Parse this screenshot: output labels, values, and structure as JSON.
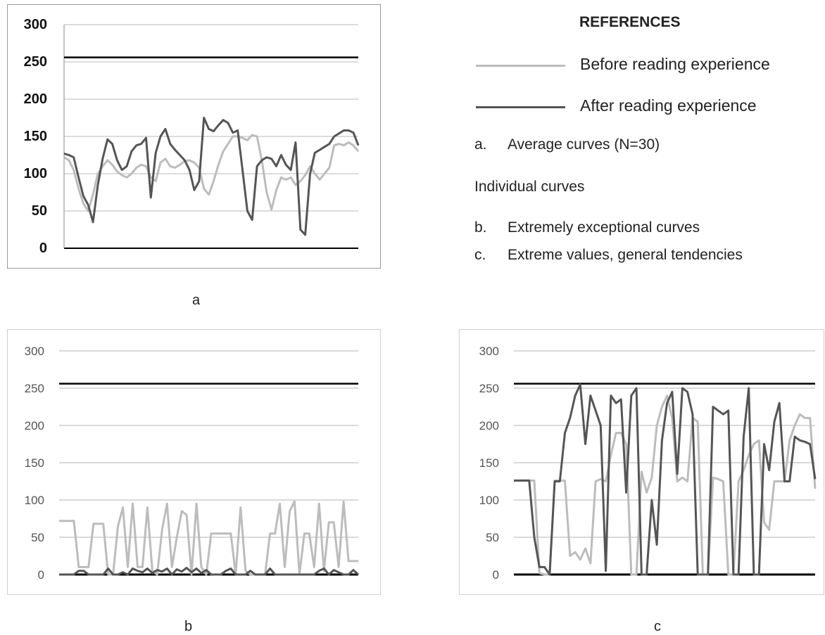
{
  "legend": {
    "title": "REFERENCES",
    "items": [
      {
        "label": "Before reading experience",
        "color": "#bcbcbc"
      },
      {
        "label": "After reading experience",
        "color": "#555555"
      }
    ],
    "notes": [
      {
        "num": "a.",
        "text": "Average curves (N=30)"
      },
      {
        "num": "",
        "text": "Individual curves"
      },
      {
        "num": "b.",
        "text": "Extremely exceptional curves"
      },
      {
        "num": "c.",
        "text": "Extreme values, general tendencies"
      }
    ]
  },
  "captions": {
    "a": "a",
    "b": "b",
    "c": "c"
  },
  "chart_data": [
    {
      "type": "line",
      "caption": "a",
      "ylim": [
        0,
        300
      ],
      "yticks": [
        "300",
        "250",
        "200",
        "150",
        "100",
        "50",
        "0"
      ],
      "reference_line": 256,
      "grid": true,
      "series": [
        {
          "name": "Before reading experience",
          "color": "#bcbcbc",
          "values": [
            122,
            118,
            105,
            80,
            60,
            50,
            72,
            100,
            110,
            118,
            112,
            103,
            98,
            95,
            100,
            108,
            112,
            110,
            95,
            90,
            115,
            120,
            110,
            108,
            112,
            117,
            118,
            115,
            108,
            80,
            72,
            90,
            112,
            130,
            140,
            150,
            150,
            148,
            145,
            152,
            150,
            118,
            75,
            52,
            78,
            95,
            92,
            95,
            85,
            90,
            98,
            110,
            100,
            92,
            100,
            108,
            138,
            140,
            138,
            142,
            138,
            130
          ]
        },
        {
          "name": "After reading experience",
          "color": "#555555",
          "values": [
            127,
            125,
            122,
            95,
            70,
            58,
            35,
            85,
            120,
            146,
            140,
            118,
            105,
            110,
            130,
            138,
            140,
            148,
            68,
            128,
            150,
            160,
            140,
            132,
            125,
            118,
            105,
            78,
            90,
            175,
            160,
            157,
            165,
            172,
            168,
            155,
            158,
            105,
            50,
            38,
            110,
            118,
            122,
            120,
            110,
            125,
            112,
            105,
            142,
            25,
            18,
            100,
            128,
            132,
            136,
            140,
            150,
            154,
            158,
            158,
            155,
            138
          ]
        }
      ]
    },
    {
      "type": "line",
      "caption": "b",
      "ylim": [
        0,
        300
      ],
      "yticks": [
        "300",
        "250",
        "200",
        "150",
        "100",
        "50",
        "0"
      ],
      "reference_line": 256,
      "grid": true,
      "series": [
        {
          "name": "Before reading experience",
          "color": "#bcbcbc",
          "values": [
            72,
            72,
            72,
            72,
            10,
            10,
            10,
            68,
            68,
            68,
            0,
            0,
            65,
            90,
            10,
            95,
            10,
            10,
            90,
            5,
            0,
            60,
            95,
            10,
            50,
            85,
            80,
            0,
            95,
            10,
            0,
            55,
            55,
            55,
            55,
            55,
            0,
            90,
            5,
            0,
            0,
            0,
            0,
            55,
            55,
            95,
            10,
            85,
            98,
            0,
            55,
            55,
            10,
            95,
            5,
            70,
            70,
            10,
            98,
            18,
            18,
            18
          ]
        },
        {
          "name": "After reading experience",
          "color": "#555555",
          "values": [
            0,
            0,
            0,
            0,
            5,
            5,
            0,
            0,
            0,
            0,
            8,
            0,
            0,
            3,
            0,
            8,
            5,
            3,
            8,
            2,
            6,
            4,
            8,
            0,
            7,
            4,
            9,
            3,
            8,
            2,
            6,
            0,
            0,
            0,
            5,
            8,
            0,
            0,
            0,
            5,
            0,
            0,
            0,
            8,
            0,
            0,
            0,
            0,
            0,
            0,
            0,
            0,
            0,
            5,
            8,
            0,
            6,
            3,
            0,
            0,
            6,
            0
          ]
        }
      ]
    },
    {
      "type": "line",
      "caption": "c",
      "ylim": [
        0,
        300
      ],
      "yticks": [
        "300",
        "250",
        "200",
        "150",
        "100",
        "50",
        "0"
      ],
      "reference_line": 256,
      "grid": true,
      "series": [
        {
          "name": "Before reading experience",
          "color": "#bcbcbc",
          "values": [
            126,
            126,
            126,
            126,
            126,
            2,
            0,
            0,
            126,
            126,
            126,
            25,
            30,
            20,
            35,
            15,
            125,
            128,
            125,
            160,
            190,
            190,
            175,
            0,
            0,
            138,
            110,
            130,
            200,
            225,
            240,
            210,
            125,
            130,
            125,
            210,
            205,
            0,
            0,
            130,
            128,
            125,
            0,
            0,
            125,
            140,
            160,
            175,
            180,
            70,
            60,
            125,
            125,
            125,
            180,
            200,
            215,
            210,
            210,
            115
          ]
        },
        {
          "name": "After reading experience",
          "color": "#555555",
          "values": [
            126,
            126,
            126,
            126,
            50,
            10,
            10,
            0,
            125,
            125,
            190,
            210,
            240,
            255,
            175,
            240,
            220,
            200,
            5,
            240,
            230,
            235,
            110,
            240,
            250,
            0,
            0,
            100,
            40,
            180,
            230,
            245,
            135,
            250,
            245,
            215,
            0,
            0,
            0,
            225,
            220,
            215,
            220,
            0,
            0,
            185,
            250,
            0,
            0,
            175,
            140,
            205,
            230,
            125,
            125,
            185,
            180,
            178,
            175,
            128
          ]
        }
      ]
    }
  ]
}
